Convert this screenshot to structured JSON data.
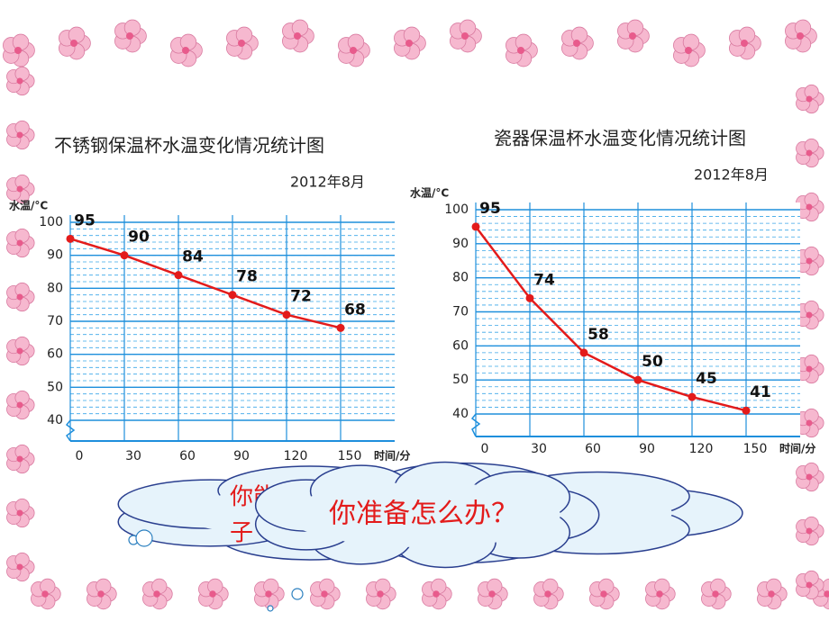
{
  "chart_data": [
    {
      "type": "line",
      "title": "不锈钢保温杯水温变化情况统计图",
      "subtitle": "2012年8月",
      "y_label": "水温/°C",
      "x_label": "时间/分",
      "x": [
        0,
        30,
        60,
        90,
        120,
        150
      ],
      "series": [
        {
          "color": "#e31b1b",
          "values": [
            95,
            90,
            84,
            78,
            72,
            68
          ]
        }
      ],
      "xlim": [
        0,
        180
      ],
      "ylim": [
        40,
        100
      ],
      "xticks": [
        0,
        30,
        60,
        90,
        120,
        150
      ],
      "yticks": [
        40,
        50,
        60,
        70,
        80,
        90,
        100
      ],
      "grid": true
    },
    {
      "type": "line",
      "title": "瓷器保温杯水温变化情况统计图",
      "subtitle": "2012年8月",
      "y_label": "水温/°C",
      "x_label": "时间/分",
      "x": [
        0,
        30,
        60,
        90,
        120,
        150
      ],
      "series": [
        {
          "color": "#e31b1b",
          "values": [
            95,
            74,
            58,
            50,
            45,
            41
          ]
        }
      ],
      "xlim": [
        0,
        180
      ],
      "ylim": [
        40,
        100
      ],
      "xticks": [
        0,
        30,
        60,
        90,
        120,
        150
      ],
      "yticks": [
        40,
        50,
        60,
        70,
        80,
        90,
        100
      ],
      "grid": true
    }
  ],
  "callouts": {
    "back_lines": [
      "你能",
      "子"
    ],
    "front": "你准备怎么办？"
  }
}
